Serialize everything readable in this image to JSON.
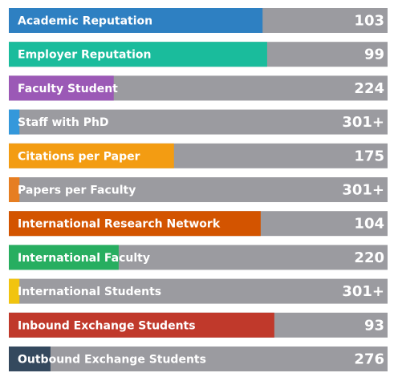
{
  "scale": [
    0,
    100
  ],
  "items": [
    {
      "label": "Academic Reputation",
      "rank": "103",
      "score": 67,
      "color": "#2e80c2"
    },
    {
      "label": "Employer Reputation",
      "rank": "99",
      "score": 68.2,
      "color": "#1abc9c"
    },
    {
      "label": "Faculty Student",
      "rank": "224",
      "score": 27.7,
      "color": "#9b59b6"
    },
    {
      "label": "Staff with PhD",
      "rank": "301+",
      "score": 2.8,
      "color": "#3498db"
    },
    {
      "label": "Citations per Paper",
      "rank": "175",
      "score": 43.6,
      "color": "#f39c12"
    },
    {
      "label": "Papers per Faculty",
      "rank": "301+",
      "score": 2.8,
      "color": "#e67e22"
    },
    {
      "label": "International Research Network",
      "rank": "104",
      "score": 66.5,
      "color": "#d35400"
    },
    {
      "label": "International Faculty",
      "rank": "220",
      "score": 29,
      "color": "#27ae60"
    },
    {
      "label": "International Students",
      "rank": "301+",
      "score": 2.8,
      "color": "#f1c40f"
    },
    {
      "label": "Inbound Exchange Students",
      "rank": "93",
      "score": 70.1,
      "color": "#c0392b"
    },
    {
      "label": "Outbound Exchange Students",
      "rank": "276",
      "score": 11,
      "color": "#34495e"
    }
  ]
}
